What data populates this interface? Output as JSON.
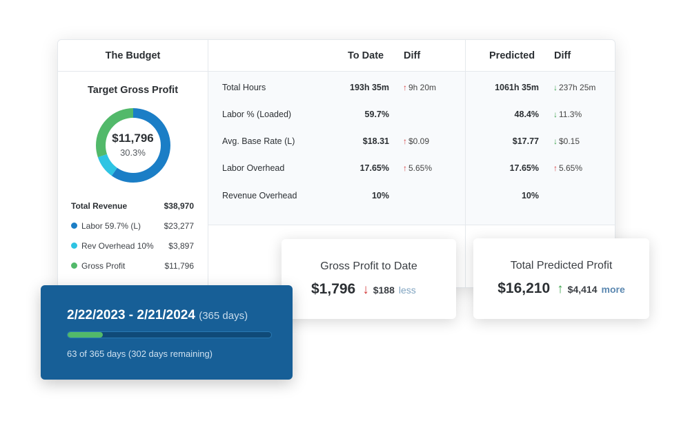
{
  "budget": {
    "header": "The Budget",
    "target_title": "Target Gross Profit",
    "donut": {
      "value": "$11,796",
      "percent": "30.3%",
      "segments": [
        {
          "name": "Labor",
          "fraction": 0.597,
          "color": "#1b7ec6"
        },
        {
          "name": "Rev Overhead",
          "fraction": 0.1,
          "color": "#2ec4e3"
        },
        {
          "name": "Gross Profit",
          "fraction": 0.303,
          "color": "#52b96a"
        }
      ]
    },
    "total_revenue": {
      "label": "Total Revenue",
      "value": "$38,970"
    },
    "items": [
      {
        "label": "Labor 59.7% (L)",
        "value": "$23,277",
        "color": "#1b7ec6"
      },
      {
        "label": "Rev Overhead 10%",
        "value": "$3,897",
        "color": "#2ec4e3"
      },
      {
        "label": "Gross Profit",
        "value": "$11,796",
        "color": "#52b96a"
      }
    ]
  },
  "table": {
    "headers": {
      "to_date": "To Date",
      "diff1": "Diff",
      "predicted": "Predicted",
      "diff2": "Diff"
    },
    "rows": [
      {
        "label": "Total Hours",
        "to_date": "193h 35m",
        "diff1": "9h 20m",
        "diff1_dir": "up",
        "predicted": "1061h 35m",
        "diff2": "237h 25m",
        "diff2_dir": "down"
      },
      {
        "label": "Labor % (Loaded)",
        "to_date": "59.7%",
        "diff1": "",
        "diff1_dir": "",
        "predicted": "48.4%",
        "diff2": "11.3%",
        "diff2_dir": "down"
      },
      {
        "label": "Avg. Base Rate (L)",
        "to_date": "$18.31",
        "diff1": "$0.09",
        "diff1_dir": "up",
        "predicted": "$17.77",
        "diff2": "$0.15",
        "diff2_dir": "down"
      },
      {
        "label": "Labor Overhead",
        "to_date": "17.65%",
        "diff1": "5.65%",
        "diff1_dir": "up",
        "predicted": "17.65%",
        "diff2": "5.65%",
        "diff2_dir": "up"
      },
      {
        "label": "Revenue Overhead",
        "to_date": "10%",
        "diff1": "",
        "diff1_dir": "",
        "predicted": "10%",
        "diff2": "",
        "diff2_dir": ""
      }
    ]
  },
  "date_card": {
    "range": "2/22/2023 - 2/21/2024",
    "days": "(365 days)",
    "progress_fraction": 0.1726,
    "remaining": "63 of 365 days (302 days remaining)",
    "bg_color": "#175f97",
    "bar_color": "#52b96a"
  },
  "gross_profit_to_date": {
    "title": "Gross Profit to Date",
    "value": "$1,796",
    "arrow": "↓",
    "delta": "$188",
    "word": "less",
    "arrow_color": "#d43a3a"
  },
  "total_predicted_profit": {
    "title": "Total Predicted Profit",
    "value": "$16,210",
    "arrow": "↑",
    "delta": "$4,414",
    "word": "more",
    "arrow_color": "#3aa14a"
  }
}
